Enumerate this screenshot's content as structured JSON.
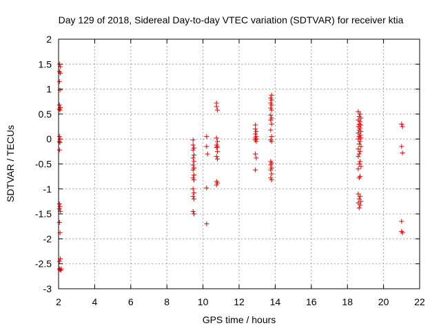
{
  "chart_data": {
    "type": "scatter",
    "title": "Day 129 of 2018, Sidereal Day-to-day VTEC variation (SDTVAR) for receiver ktia",
    "xlabel": "GPS time / hours",
    "ylabel": "SDTVAR / TECUs",
    "xlim": [
      2,
      22
    ],
    "ylim": [
      -3,
      2
    ],
    "xticks": [
      "2",
      "4",
      "6",
      "8",
      "10",
      "12",
      "14",
      "16",
      "18",
      "20",
      "22"
    ],
    "yticks": [
      "2",
      "1.5",
      "1",
      "0.5",
      "0",
      "-0.5",
      "-1",
      "-1.5",
      "-2",
      "-2.5",
      "-3"
    ],
    "grid": true,
    "marker": "+",
    "color": "#e00000",
    "points": [
      [
        2.05,
        1.5
      ],
      [
        2.1,
        1.45
      ],
      [
        2.05,
        1.35
      ],
      [
        2.1,
        1.32
      ],
      [
        2.05,
        1.15
      ],
      [
        2.08,
        0.98
      ],
      [
        2.05,
        0.68
      ],
      [
        2.1,
        0.63
      ],
      [
        2.05,
        0.6
      ],
      [
        2.08,
        0.58
      ],
      [
        2.05,
        0.05
      ],
      [
        2.08,
        0.0
      ],
      [
        2.05,
        -0.05
      ],
      [
        2.08,
        -0.07
      ],
      [
        2.05,
        -0.22
      ],
      [
        2.05,
        -1.3
      ],
      [
        2.08,
        -1.35
      ],
      [
        2.05,
        -1.4
      ],
      [
        2.1,
        -1.45
      ],
      [
        2.05,
        -1.67
      ],
      [
        2.08,
        -1.88
      ],
      [
        2.1,
        -2.4
      ],
      [
        2.05,
        -2.45
      ],
      [
        2.05,
        -2.6
      ],
      [
        2.08,
        -2.62
      ],
      [
        2.12,
        -2.63
      ],
      [
        2.15,
        -2.6
      ],
      [
        9.45,
        -0.02
      ],
      [
        9.45,
        -0.12
      ],
      [
        9.5,
        -0.18
      ],
      [
        9.45,
        -0.22
      ],
      [
        9.5,
        -0.32
      ],
      [
        9.45,
        -0.38
      ],
      [
        9.5,
        -0.45
      ],
      [
        9.45,
        -0.52
      ],
      [
        9.5,
        -0.58
      ],
      [
        9.45,
        -0.62
      ],
      [
        9.5,
        -0.72
      ],
      [
        9.45,
        -0.78
      ],
      [
        9.5,
        -0.82
      ],
      [
        9.45,
        -1.0
      ],
      [
        9.5,
        -1.08
      ],
      [
        9.45,
        -1.15
      ],
      [
        9.5,
        -1.2
      ],
      [
        9.45,
        -1.45
      ],
      [
        9.5,
        -1.5
      ],
      [
        10.2,
        0.05
      ],
      [
        10.2,
        -0.15
      ],
      [
        10.25,
        -0.3
      ],
      [
        10.2,
        -0.98
      ],
      [
        10.2,
        -1.7
      ],
      [
        10.75,
        0.72
      ],
      [
        10.75,
        0.65
      ],
      [
        10.8,
        0.58
      ],
      [
        10.75,
        0.02
      ],
      [
        10.8,
        -0.05
      ],
      [
        10.75,
        -0.12
      ],
      [
        10.8,
        -0.15
      ],
      [
        10.75,
        -0.17
      ],
      [
        10.8,
        -0.25
      ],
      [
        10.75,
        -0.35
      ],
      [
        10.8,
        -0.4
      ],
      [
        10.75,
        -0.85
      ],
      [
        10.8,
        -0.88
      ],
      [
        10.75,
        -0.92
      ],
      [
        12.9,
        0.28
      ],
      [
        12.9,
        0.2
      ],
      [
        12.95,
        0.15
      ],
      [
        12.9,
        0.1
      ],
      [
        12.95,
        0.05
      ],
      [
        12.9,
        0.02
      ],
      [
        12.95,
        0.0
      ],
      [
        12.9,
        -0.02
      ],
      [
        12.95,
        -0.05
      ],
      [
        12.9,
        -0.3
      ],
      [
        12.95,
        -0.38
      ],
      [
        12.9,
        -0.62
      ],
      [
        13.8,
        0.88
      ],
      [
        13.75,
        0.82
      ],
      [
        13.8,
        0.78
      ],
      [
        13.75,
        0.72
      ],
      [
        13.8,
        0.68
      ],
      [
        13.75,
        0.62
      ],
      [
        13.8,
        0.58
      ],
      [
        13.75,
        0.48
      ],
      [
        13.8,
        0.42
      ],
      [
        13.75,
        0.38
      ],
      [
        13.8,
        0.3
      ],
      [
        13.75,
        0.18
      ],
      [
        13.8,
        0.05
      ],
      [
        13.75,
        -0.02
      ],
      [
        13.8,
        -0.05
      ],
      [
        13.75,
        -0.45
      ],
      [
        13.8,
        -0.48
      ],
      [
        13.75,
        -0.52
      ],
      [
        13.8,
        -0.58
      ],
      [
        13.75,
        -0.62
      ],
      [
        13.8,
        -0.7
      ],
      [
        13.75,
        -0.78
      ],
      [
        13.8,
        -0.82
      ],
      [
        18.6,
        0.55
      ],
      [
        18.7,
        0.5
      ],
      [
        18.65,
        0.45
      ],
      [
        18.75,
        0.42
      ],
      [
        18.6,
        0.38
      ],
      [
        18.7,
        0.35
      ],
      [
        18.65,
        0.3
      ],
      [
        18.75,
        0.28
      ],
      [
        18.6,
        0.25
      ],
      [
        18.7,
        0.22
      ],
      [
        18.65,
        0.18
      ],
      [
        18.75,
        0.15
      ],
      [
        18.6,
        0.12
      ],
      [
        18.7,
        0.08
      ],
      [
        18.65,
        0.05
      ],
      [
        18.75,
        0.02
      ],
      [
        18.6,
        0.0
      ],
      [
        18.7,
        -0.05
      ],
      [
        18.65,
        -0.1
      ],
      [
        18.75,
        -0.15
      ],
      [
        18.6,
        -0.2
      ],
      [
        18.7,
        -0.25
      ],
      [
        18.65,
        -0.3
      ],
      [
        18.6,
        -0.35
      ],
      [
        18.7,
        -0.45
      ],
      [
        18.65,
        -0.5
      ],
      [
        18.75,
        -0.55
      ],
      [
        18.6,
        -0.6
      ],
      [
        18.7,
        -0.75
      ],
      [
        18.65,
        -0.78
      ],
      [
        18.6,
        -1.1
      ],
      [
        18.7,
        -1.15
      ],
      [
        18.65,
        -1.2
      ],
      [
        18.75,
        -1.25
      ],
      [
        18.6,
        -1.28
      ],
      [
        18.7,
        -1.32
      ],
      [
        18.65,
        -1.38
      ],
      [
        21.0,
        0.3
      ],
      [
        21.05,
        0.25
      ],
      [
        21.0,
        -0.15
      ],
      [
        21.05,
        -0.28
      ],
      [
        21.0,
        -1.65
      ],
      [
        21.0,
        -1.85
      ],
      [
        21.05,
        -1.88
      ]
    ]
  }
}
